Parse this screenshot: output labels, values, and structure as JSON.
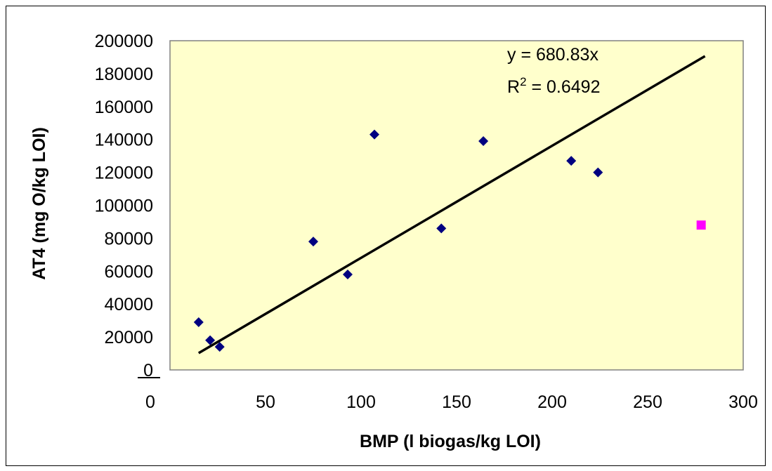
{
  "chart_data": {
    "type": "scatter",
    "title": "",
    "xlabel": "BMP (l biogas/kg LOI)",
    "ylabel": "AT4 (mg O/kg LOI)",
    "xlim": [
      0,
      300
    ],
    "ylim": [
      0,
      200000
    ],
    "x_ticks": [
      0,
      50,
      100,
      150,
      200,
      250,
      300
    ],
    "y_ticks": [
      0,
      20000,
      40000,
      60000,
      80000,
      100000,
      120000,
      140000,
      160000,
      180000,
      200000
    ],
    "plot_background": "#ffffcc",
    "grid": false,
    "legend": "none",
    "series": [
      {
        "marker": "diamond",
        "color": "#000080",
        "x": [
          15,
          21,
          26,
          75,
          93,
          107,
          142,
          164,
          210,
          224
        ],
        "y": [
          29000,
          18000,
          14000,
          78000,
          58000,
          143000,
          86000,
          139000,
          127000,
          120000
        ]
      },
      {
        "marker": "square",
        "color": "#ff00ff",
        "x": [
          278
        ],
        "y": [
          88000
        ]
      }
    ],
    "trendline": {
      "slope": 680.83,
      "x_range": [
        15,
        280
      ],
      "color": "#000000"
    },
    "annotations": {
      "equation": "y = 680.83x",
      "r2_prefix": "R",
      "r2_sup": "2",
      "r2_suffix": " = 0.6492"
    }
  }
}
